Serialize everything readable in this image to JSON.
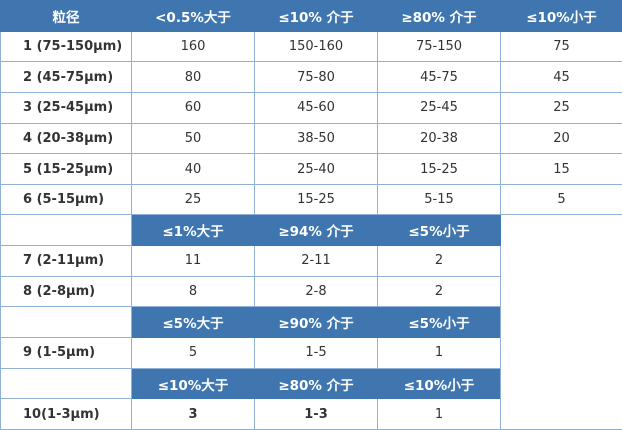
{
  "colors": {
    "header_bg": "#3f76b0",
    "border": "#8fb0d8"
  },
  "header": [
    "粒径",
    "<0.5%大于",
    "≤10% 介于",
    "≥80% 介于",
    "≤10%小于"
  ],
  "group1": [
    [
      "1 (75-150µm)",
      "160",
      "150-160",
      "75-150",
      "75"
    ],
    [
      "2 (45-75µm)",
      "80",
      "75-80",
      "45-75",
      "45"
    ],
    [
      "3 (25-45µm)",
      "60",
      "45-60",
      "25-45",
      "25"
    ],
    [
      "4 (20-38µm)",
      "50",
      "38-50",
      "20-38",
      "20"
    ],
    [
      "5 (15-25µm)",
      "40",
      "25-40",
      "15-25",
      "15"
    ],
    [
      "6 (5-15µm)",
      "25",
      "15-25",
      "5-15",
      "5"
    ]
  ],
  "subheader2": [
    "≤1%大于",
    "≥94% 介于",
    "≤5%小于"
  ],
  "group2": [
    [
      "7 (2-11µm)",
      "11",
      "2-11",
      "2"
    ],
    [
      "8 (2-8µm)",
      "8",
      "2-8",
      "2"
    ]
  ],
  "subheader3": [
    "≤5%大于",
    "≥90% 介于",
    "≤5%小于"
  ],
  "group3": [
    [
      "9 (1-5µm)",
      "5",
      "1-5",
      "1"
    ]
  ],
  "subheader4": [
    "≤10%大于",
    "≥80% 介于",
    "≤10%小于"
  ],
  "group4": [
    [
      "10(1-3µm)",
      "3",
      "1-3",
      "1"
    ]
  ]
}
